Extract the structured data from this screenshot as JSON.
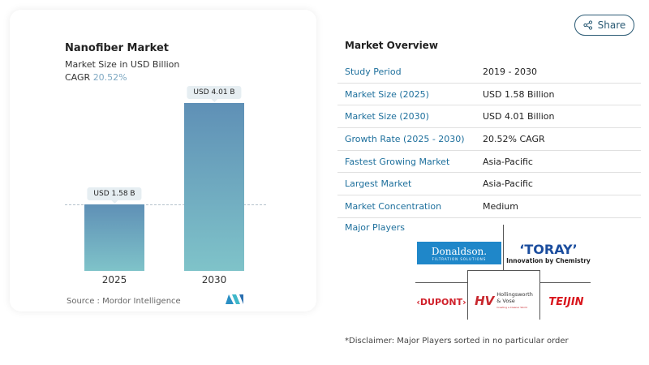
{
  "chart_data": {
    "type": "bar",
    "title": "Nanofiber Market",
    "subtitle": "Market Size in USD Billion",
    "cagr_label": "CAGR",
    "cagr_value": "20.52%",
    "categories": [
      "2025",
      "2030"
    ],
    "values": [
      1.58,
      4.01
    ],
    "data_labels": [
      "USD 1.58 B",
      "USD 4.01 B"
    ],
    "ylim": [
      0,
      4.01
    ],
    "grid": false,
    "colors": {
      "bar_top": "#5f90b6",
      "bar_bottom": "#7fc3c9"
    },
    "source": "Source :  Mordor Intelligence"
  },
  "share": {
    "label": "Share",
    "icon": "share-icon"
  },
  "overview": {
    "title": "Market Overview",
    "rows": [
      {
        "key": "Study Period",
        "value": "2019 - 2030"
      },
      {
        "key": "Market Size (2025)",
        "value": "USD 1.58 Billion"
      },
      {
        "key": "Market Size (2030)",
        "value": "USD 4.01 Billion"
      },
      {
        "key": "Growth Rate (2025 - 2030)",
        "value": "20.52% CAGR"
      },
      {
        "key": "Fastest Growing Market",
        "value": "Asia-Pacific"
      },
      {
        "key": "Largest Market",
        "value": "Asia-Pacific"
      },
      {
        "key": "Market Concentration",
        "value": "Medium"
      }
    ],
    "major_players_label": "Major Players",
    "players": {
      "donaldson": "Donaldson.",
      "donaldson_tag": "FILTRATION SOLUTIONS",
      "toray": "‘TORAY’",
      "toray_tag": "Innovation by Chemistry",
      "dupont": "‹DUPONT›",
      "hv": "HV",
      "hv_name": "Hollingsworth",
      "hv_name2": "& Vose",
      "hv_tag": "Creating a Cleaner World",
      "teijin": "TEIJIN"
    },
    "disclaimer": "*Disclaimer: Major Players sorted in no particular order"
  }
}
